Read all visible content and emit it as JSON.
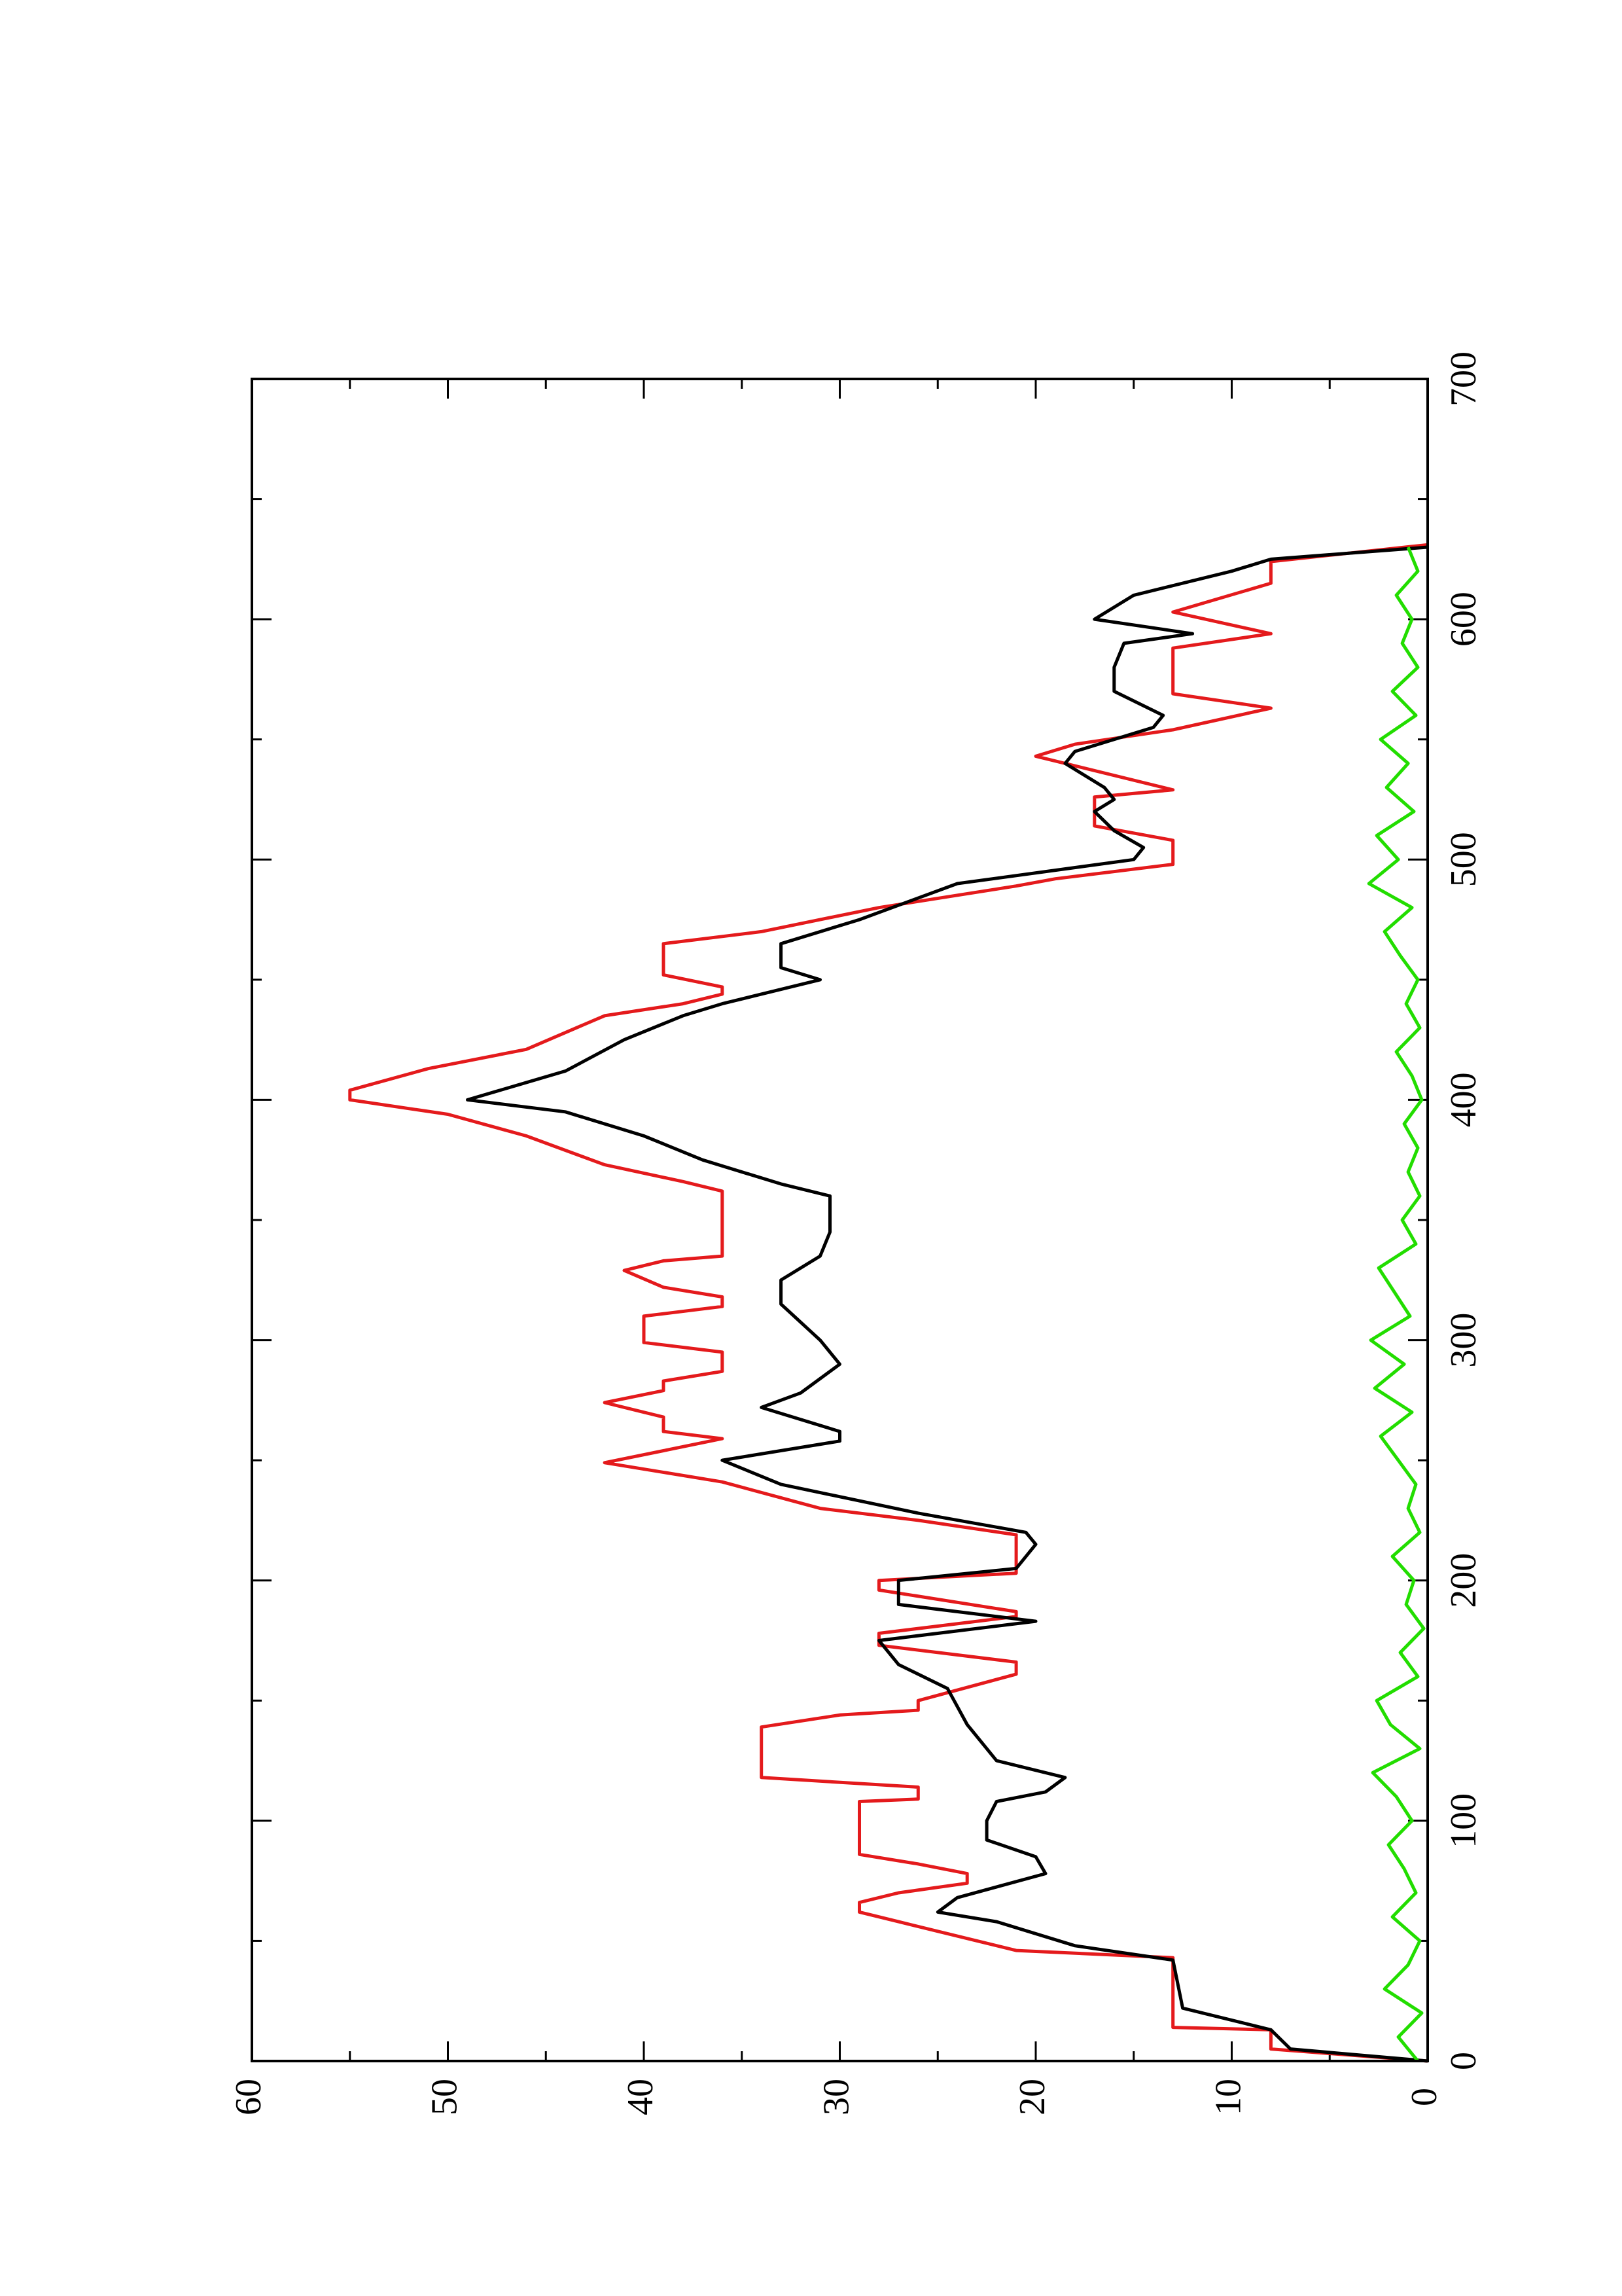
{
  "chart_data": {
    "type": "line",
    "xlim": [
      0,
      700
    ],
    "xticks": [
      0,
      100,
      200,
      300,
      400,
      500,
      600,
      700
    ],
    "xminor": [
      50,
      150,
      250,
      350,
      450,
      550,
      650
    ],
    "ylim": [
      0,
      60
    ],
    "yticks": [
      0,
      10,
      20,
      30,
      40,
      50,
      60
    ],
    "yminor": [
      5,
      15,
      25,
      35,
      45,
      55
    ],
    "rotated": true,
    "series": [
      {
        "color": "#e41a1c",
        "x": [
          0,
          5,
          13,
          14,
          43,
          46,
          58,
          62,
          66,
          70,
          74,
          78,
          82,
          86,
          92,
          108,
          109,
          112,
          114,
          118,
          139,
          144,
          146,
          150,
          161,
          166,
          173,
          178,
          185,
          187,
          196,
          200,
          203,
          210,
          219,
          225,
          230,
          241,
          249,
          254,
          259,
          262,
          268,
          274,
          279,
          283,
          287,
          295,
          299,
          303,
          310,
          314,
          318,
          322,
          329,
          333,
          335,
          362,
          366,
          373,
          385,
          394,
          400,
          404,
          413,
          421,
          435,
          440,
          444,
          447,
          452,
          465,
          468,
          470,
          480,
          489,
          492,
          498,
          508,
          514,
          526,
          529,
          543,
          548,
          554,
          563,
          569,
          588,
          594,
          603,
          615,
          624,
          631
        ],
        "values": [
          0,
          8,
          8,
          13,
          13,
          21,
          27,
          29,
          29,
          27,
          23.5,
          23.5,
          26,
          29,
          29,
          29,
          26,
          26,
          26,
          34,
          34,
          30,
          26,
          26,
          21,
          21,
          28,
          28,
          21,
          21,
          28,
          28,
          21,
          21,
          21,
          26,
          31,
          36,
          42,
          39,
          36,
          39,
          39,
          42,
          39,
          39,
          36,
          36,
          40,
          40,
          40,
          36,
          36,
          39,
          41,
          39,
          36,
          36,
          38,
          42,
          46,
          50,
          55,
          55,
          51,
          46,
          42,
          38,
          36,
          36,
          39,
          39,
          36,
          34,
          28,
          21,
          19,
          13,
          13,
          17,
          17,
          13,
          20,
          18,
          13,
          8,
          13,
          13,
          8,
          13,
          8,
          8,
          0
        ]
      },
      {
        "color": "#000000",
        "x": [
          0,
          5,
          13,
          22,
          42,
          48,
          58,
          62,
          68,
          78,
          85,
          92,
          100,
          108,
          112,
          118,
          125,
          140,
          155,
          165,
          175,
          183,
          190,
          200,
          205,
          215,
          220,
          228,
          240,
          250,
          258,
          262,
          272,
          278,
          290,
          300,
          315,
          325,
          335,
          345,
          360,
          365,
          375,
          385,
          395,
          400,
          412,
          425,
          435,
          440,
          450,
          455,
          465,
          475,
          490,
          500,
          505,
          512,
          520,
          525,
          530,
          540,
          545,
          555,
          560,
          570,
          580,
          590,
          594,
          600,
          610,
          620,
          625,
          630
        ],
        "values": [
          0,
          7,
          8,
          12.5,
          13,
          18,
          22,
          25,
          24,
          19.5,
          20,
          22.5,
          22.5,
          22,
          19.5,
          18.5,
          22,
          23.5,
          24.5,
          27,
          28,
          20,
          27,
          27,
          21,
          20,
          20.5,
          26,
          33,
          36,
          30,
          30,
          34,
          32,
          30,
          31,
          33,
          33,
          31,
          30.5,
          30.5,
          33,
          37,
          40,
          44,
          49,
          44,
          41,
          38,
          36,
          31,
          33,
          33,
          29,
          24,
          15,
          14.5,
          16,
          17,
          16,
          16.5,
          18.5,
          18,
          14,
          13.5,
          16,
          16,
          15.5,
          12,
          17,
          15,
          10,
          8,
          0
        ]
      },
      {
        "color": "#22dd00",
        "x": [
          0,
          10,
          20,
          30,
          40,
          50,
          60,
          70,
          80,
          90,
          100,
          110,
          120,
          130,
          140,
          150,
          160,
          170,
          180,
          190,
          200,
          210,
          220,
          230,
          240,
          250,
          260,
          270,
          280,
          290,
          300,
          310,
          320,
          330,
          340,
          350,
          360,
          370,
          380,
          390,
          400,
          410,
          420,
          430,
          440,
          450,
          460,
          470,
          480,
          490,
          500,
          510,
          520,
          530,
          540,
          550,
          560,
          570,
          580,
          590,
          600,
          610,
          620,
          630
        ],
        "values": [
          0.5,
          1.5,
          0.3,
          2.2,
          1.0,
          0.4,
          1.8,
          0.6,
          1.2,
          2.0,
          0.8,
          1.6,
          2.8,
          0.4,
          1.9,
          2.6,
          0.5,
          1.4,
          0.2,
          1.1,
          0.7,
          1.8,
          0.4,
          1.0,
          0.6,
          1.5,
          2.4,
          0.8,
          2.7,
          1.2,
          2.9,
          0.9,
          1.7,
          2.5,
          0.6,
          1.3,
          0.4,
          1.0,
          0.5,
          1.2,
          0.3,
          0.8,
          1.6,
          0.4,
          1.1,
          0.5,
          1.4,
          2.2,
          0.8,
          3.0,
          1.5,
          2.6,
          0.7,
          2.1,
          1.0,
          2.4,
          0.6,
          1.8,
          0.5,
          1.3,
          0.8,
          1.6,
          0.5,
          1.0
        ]
      }
    ]
  }
}
